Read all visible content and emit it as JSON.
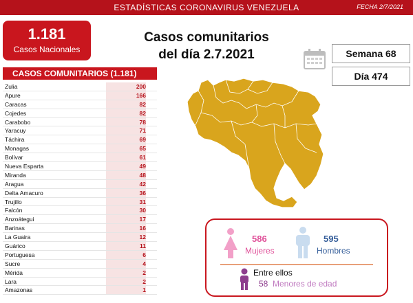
{
  "header": {
    "title": "ESTADÍSTICAS CORONAVIRUS VENEZUELA",
    "date": "FECHA 2/7/2021"
  },
  "national": {
    "count": "1.181",
    "label": "Casos Nacionales"
  },
  "headline": {
    "line1": "Casos comunitarios",
    "line2": "del día 2.7.2021"
  },
  "week_label": "Semana 68",
  "day_label": "Día 474",
  "community": {
    "title": "CASOS COMUNITARIOS (1.181)",
    "rows": [
      {
        "state": "Zulia",
        "count": "200"
      },
      {
        "state": "Apure",
        "count": "166"
      },
      {
        "state": "Caracas",
        "count": "82"
      },
      {
        "state": "Cojedes",
        "count": "82"
      },
      {
        "state": "Carabobo",
        "count": "78"
      },
      {
        "state": "Yaracuy",
        "count": "71"
      },
      {
        "state": "Táchira",
        "count": "69"
      },
      {
        "state": "Monagas",
        "count": "65"
      },
      {
        "state": "Bolívar",
        "count": "61"
      },
      {
        "state": "Nueva Esparta",
        "count": "49"
      },
      {
        "state": "Miranda",
        "count": "48"
      },
      {
        "state": "Aragua",
        "count": "42"
      },
      {
        "state": "Delta Amacuro",
        "count": "36"
      },
      {
        "state": "Trujillo",
        "count": "31"
      },
      {
        "state": "Falcón",
        "count": "30"
      },
      {
        "state": "Anzoátegui",
        "count": "17"
      },
      {
        "state": "Barinas",
        "count": "16"
      },
      {
        "state": "La Guaira",
        "count": "12"
      },
      {
        "state": "Guárico",
        "count": "11"
      },
      {
        "state": "Portuguesa",
        "count": "6"
      },
      {
        "state": "Sucre",
        "count": "4"
      },
      {
        "state": "Mérida",
        "count": "2"
      },
      {
        "state": "Lara",
        "count": "2"
      },
      {
        "state": "Amazonas",
        "count": "1"
      }
    ]
  },
  "demographics": {
    "women_count": "586",
    "women_label": "Mujeres",
    "men_count": "595",
    "men_label": "Hombres",
    "minors_intro": "Entre ellos",
    "minors_count": "58",
    "minors_label": "Menores de edad"
  },
  "colors": {
    "brand_red": "#c9161e",
    "map_fill": "#d9a51d",
    "women": "#e0529a",
    "men": "#355e9a"
  },
  "icons": [
    "calendar-icon",
    "female-icon",
    "male-icon",
    "child-icon",
    "venezuela-map"
  ]
}
